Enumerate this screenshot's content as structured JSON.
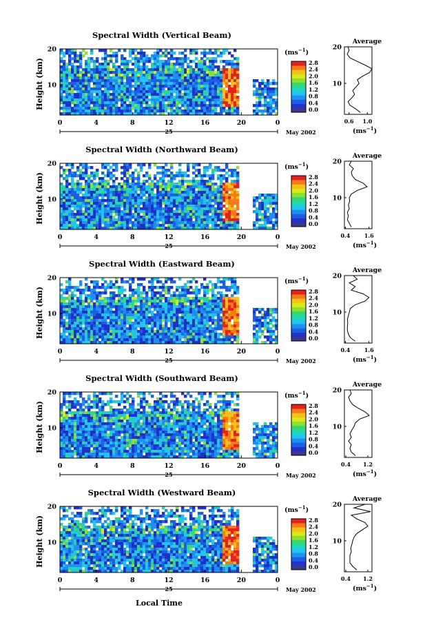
{
  "colorbar": {
    "unit_label": "(ms",
    "unit_sup": "−1",
    "unit_close": ")",
    "tick_labels": [
      "0.0",
      "0.4",
      "0.8",
      "1.2",
      "1.6",
      "2.0",
      "2.4",
      "2.8"
    ],
    "colors": [
      "#3a3a8c",
      "#2030c8",
      "#1a5fe6",
      "#1f8ff2",
      "#21c4f0",
      "#20d8b8",
      "#33d872",
      "#8ae030",
      "#d8e818",
      "#f6c018",
      "#f67a18",
      "#e62020"
    ]
  },
  "shared": {
    "x_ticks": [
      "0",
      "4",
      "8",
      "12",
      "16",
      "20",
      "0"
    ],
    "y_ticks": [
      "20",
      "10"
    ],
    "y_label": "Height (km)",
    "day_label": "25",
    "month_label": "May 2002",
    "x_label": "Local Time",
    "avg_title": "Average",
    "avg_unit": "(ms",
    "avg_unit_sup": "−1",
    "avg_unit_close": ")"
  },
  "chart_data": [
    {
      "type": "heatmap",
      "title": "Spectral Width (Vertical Beam)",
      "x_range_hours": [
        0,
        24
      ],
      "y_range_km": [
        1.5,
        20
      ],
      "avg_ticks": [
        "0.6",
        "1.0"
      ],
      "avg_xlim": [
        0.5,
        1.1
      ],
      "profile": [
        [
          0.85,
          2
        ],
        [
          0.75,
          3
        ],
        [
          0.62,
          4
        ],
        [
          0.58,
          5
        ],
        [
          0.66,
          6
        ],
        [
          0.72,
          7
        ],
        [
          0.68,
          8
        ],
        [
          0.75,
          9
        ],
        [
          0.82,
          10
        ],
        [
          0.78,
          11
        ],
        [
          0.9,
          12
        ],
        [
          1.05,
          13
        ],
        [
          1.1,
          14
        ],
        [
          0.95,
          15
        ],
        [
          0.78,
          16
        ],
        [
          0.62,
          17
        ],
        [
          0.56,
          18
        ],
        [
          0.6,
          19
        ],
        [
          0.58,
          20
        ]
      ],
      "burst_start_hour": 18.5,
      "gap_hours": [
        19.5,
        21.0
      ]
    },
    {
      "type": "heatmap",
      "title": "Spectral Width (Northward Beam)",
      "x_range_hours": [
        0,
        24
      ],
      "y_range_km": [
        1.5,
        20
      ],
      "avg_ticks": [
        "0.4",
        "1.6"
      ],
      "avg_xlim": [
        0.35,
        1.75
      ],
      "profile": [
        [
          0.7,
          2
        ],
        [
          0.6,
          3
        ],
        [
          0.5,
          4
        ],
        [
          0.55,
          5
        ],
        [
          0.5,
          6
        ],
        [
          0.6,
          7
        ],
        [
          0.55,
          8
        ],
        [
          0.62,
          9
        ],
        [
          0.6,
          10
        ],
        [
          0.7,
          11
        ],
        [
          1.0,
          12
        ],
        [
          1.5,
          13
        ],
        [
          1.3,
          14
        ],
        [
          0.9,
          15
        ],
        [
          0.75,
          16
        ],
        [
          0.7,
          17
        ],
        [
          0.8,
          18
        ],
        [
          0.6,
          19
        ],
        [
          0.7,
          20
        ]
      ],
      "burst_start_hour": 18.5,
      "gap_hours": [
        19.5,
        21.0
      ]
    },
    {
      "type": "heatmap",
      "title": "Spectral Width (Eastward Beam)",
      "x_range_hours": [
        0,
        24
      ],
      "y_range_km": [
        1.5,
        20
      ],
      "avg_ticks": [
        "0.4",
        "1.6"
      ],
      "avg_xlim": [
        0.35,
        1.75
      ],
      "profile": [
        [
          0.9,
          2
        ],
        [
          0.65,
          3
        ],
        [
          0.55,
          4
        ],
        [
          0.5,
          5
        ],
        [
          0.5,
          6
        ],
        [
          0.52,
          7
        ],
        [
          0.5,
          8
        ],
        [
          0.55,
          9
        ],
        [
          0.6,
          10
        ],
        [
          0.65,
          11
        ],
        [
          0.9,
          12
        ],
        [
          1.4,
          13
        ],
        [
          1.6,
          14
        ],
        [
          1.3,
          15
        ],
        [
          0.7,
          16
        ],
        [
          0.9,
          17
        ],
        [
          0.6,
          18
        ],
        [
          1.0,
          19
        ],
        [
          0.8,
          20
        ]
      ],
      "burst_start_hour": 18.5,
      "gap_hours": [
        19.5,
        21.0
      ]
    },
    {
      "type": "heatmap",
      "title": "Spectral Width (Southward Beam)",
      "x_range_hours": [
        0,
        24
      ],
      "y_range_km": [
        1.5,
        20
      ],
      "avg_ticks": [
        "0.4",
        "1.2"
      ],
      "avg_xlim": [
        0.35,
        1.35
      ],
      "profile": [
        [
          0.75,
          2
        ],
        [
          0.6,
          3
        ],
        [
          0.55,
          4
        ],
        [
          0.6,
          5
        ],
        [
          0.5,
          6
        ],
        [
          0.6,
          7
        ],
        [
          0.55,
          8
        ],
        [
          0.62,
          9
        ],
        [
          0.7,
          10
        ],
        [
          0.75,
          11
        ],
        [
          0.9,
          12
        ],
        [
          1.25,
          13
        ],
        [
          1.1,
          14
        ],
        [
          0.85,
          15
        ],
        [
          0.65,
          16
        ],
        [
          0.55,
          17
        ],
        [
          0.5,
          18
        ],
        [
          0.6,
          19
        ],
        [
          0.55,
          20
        ]
      ],
      "burst_start_hour": 18.5,
      "gap_hours": [
        19.5,
        21.0
      ]
    },
    {
      "type": "heatmap",
      "title": "Spectral Width (Westward Beam)",
      "x_range_hours": [
        0,
        24
      ],
      "y_range_km": [
        1.5,
        20
      ],
      "avg_ticks": [
        "0.4",
        "1.2"
      ],
      "avg_xlim": [
        0.35,
        1.35
      ],
      "profile": [
        [
          0.8,
          2
        ],
        [
          0.65,
          3
        ],
        [
          0.55,
          4
        ],
        [
          0.55,
          5
        ],
        [
          0.55,
          6
        ],
        [
          0.6,
          7
        ],
        [
          0.58,
          8
        ],
        [
          0.62,
          9
        ],
        [
          0.65,
          10
        ],
        [
          0.7,
          11
        ],
        [
          0.8,
          12
        ],
        [
          1.0,
          13
        ],
        [
          1.2,
          14
        ],
        [
          1.1,
          15
        ],
        [
          0.8,
          16
        ],
        [
          0.6,
          17
        ],
        [
          1.3,
          18
        ],
        [
          0.7,
          19
        ],
        [
          1.1,
          20
        ]
      ],
      "burst_start_hour": 18.5,
      "gap_hours": [
        19.5,
        21.0
      ]
    }
  ]
}
